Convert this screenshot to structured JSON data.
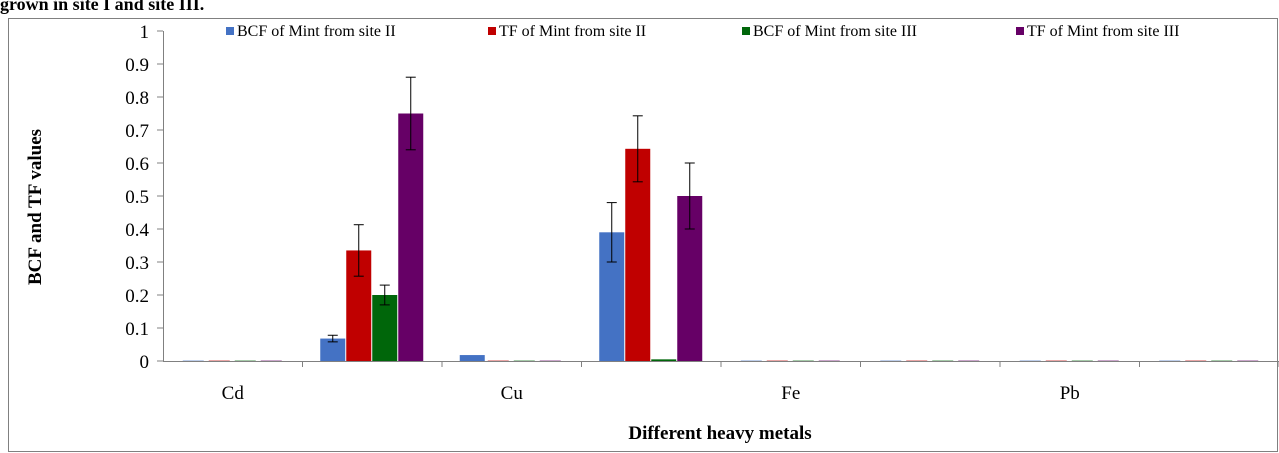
{
  "header": {
    "caption_fragment": "grown in site I and site III."
  },
  "chart_data": {
    "type": "bar",
    "categories": [
      "Cd",
      "Cu",
      "Fe",
      "Pb"
    ],
    "slots": [
      {
        "label": "Cd",
        "values": [
          0,
          0,
          0,
          0
        ]
      },
      {
        "label": "",
        "values": [
          0.068,
          0.335,
          0.2,
          0.75
        ]
      },
      {
        "label": "Cu",
        "values": [
          0.018,
          0,
          0,
          0
        ]
      },
      {
        "label": "",
        "values": [
          0.39,
          0.643,
          0.005,
          0.5
        ]
      },
      {
        "label": "Fe",
        "values": [
          0,
          0,
          0,
          0
        ]
      },
      {
        "label": "",
        "values": [
          0,
          0,
          0,
          0
        ]
      },
      {
        "label": "Pb",
        "values": [
          0,
          0,
          0,
          0
        ]
      },
      {
        "label": "",
        "values": [
          0,
          0,
          0,
          0
        ]
      }
    ],
    "errors": [
      [
        0,
        0,
        0,
        0
      ],
      [
        0.01,
        0.078,
        0.03,
        0.11
      ],
      [
        0,
        0,
        0,
        0
      ],
      [
        0.09,
        0.1,
        0,
        0.1
      ],
      [
        0,
        0,
        0,
        0
      ],
      [
        0,
        0,
        0,
        0
      ],
      [
        0,
        0,
        0,
        0
      ],
      [
        0,
        0,
        0,
        0
      ]
    ],
    "series": [
      {
        "name": "BCF of Mint from site II",
        "color": "#4472C4"
      },
      {
        "name": "TF of Mint from site II",
        "color": "#C00000"
      },
      {
        "name": "BCF of Mint from site III",
        "color": "#00660A"
      },
      {
        "name": "TF of Mint from site III",
        "color": "#660066"
      }
    ],
    "xlabel": "Different heavy metals",
    "ylabel": "BCF and TF values",
    "ylim": [
      0,
      1
    ],
    "yticks": [
      "0",
      "0.1",
      "0.2",
      "0.3",
      "0.4",
      "0.5",
      "0.6",
      "0.7",
      "0.8",
      "0.9",
      "1"
    ],
    "grid": false,
    "legend_position": "top"
  }
}
